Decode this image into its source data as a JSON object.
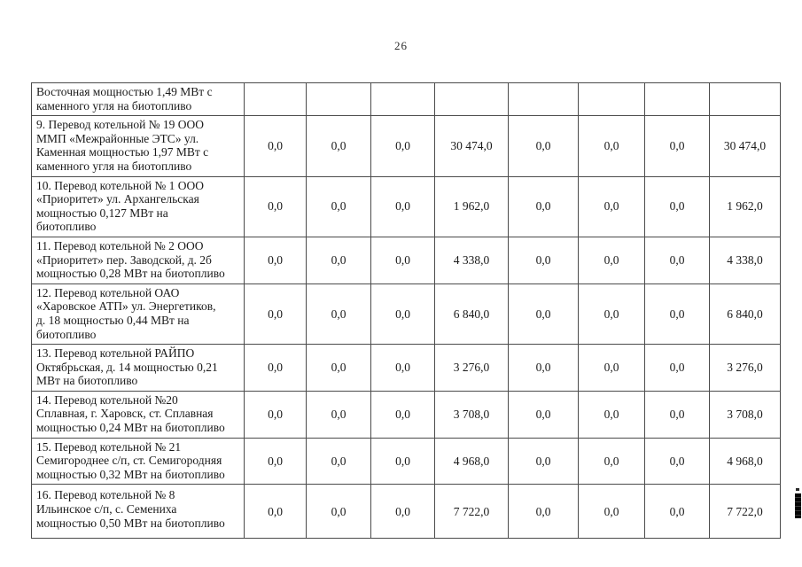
{
  "page_number": "26",
  "colors": {
    "ink": "#1a1a1a",
    "border_dark": "#4b4b4b",
    "border_light": "#6f6f6f",
    "paper": "#ffffff"
  },
  "table": {
    "column_count": 9,
    "rows": [
      {
        "desc": "Восточная мощностью 1,49 МВт с\nкаменного угля на биотопливо",
        "values": [
          "",
          "",
          "",
          "",
          "",
          "",
          "",
          ""
        ]
      },
      {
        "desc": "9. Перевод котельной № 19 ООО\nММП «Межрайонные ЭТС» ул.\nКаменная мощностью 1,97 МВт с\nкаменного угля на биотопливо",
        "values": [
          "0,0",
          "0,0",
          "0,0",
          "30 474,0",
          "0,0",
          "0,0",
          "0,0",
          "30 474,0"
        ]
      },
      {
        "desc": "10. Перевод котельной № 1 ООО\n«Приоритет» ул. Архангельская\nмощностью 0,127 МВт на\nбиотопливо",
        "values": [
          "0,0",
          "0,0",
          "0,0",
          "1 962,0",
          "0,0",
          "0,0",
          "0,0",
          "1 962,0"
        ]
      },
      {
        "desc": "11. Перевод котельной № 2 ООО\n«Приоритет» пер. Заводской, д. 2б\nмощностью 0,28 МВт на биотопливо",
        "values": [
          "0,0",
          "0,0",
          "0,0",
          "4 338,0",
          "0,0",
          "0,0",
          "0,0",
          "4 338,0"
        ]
      },
      {
        "desc": "12. Перевод котельной ОАО\n«Харовское АТП» ул. Энергетиков,\nд. 18  мощностью 0,44 МВт на\nбиотопливо",
        "values": [
          "0,0",
          "0,0",
          "0,0",
          "6 840,0",
          "0,0",
          "0,0",
          "0,0",
          "6 840,0"
        ]
      },
      {
        "desc": "13. Перевод котельной РАЙПО\nОктябрьская, д. 14  мощностью 0,21\nМВт на биотопливо",
        "values": [
          "0,0",
          "0,0",
          "0,0",
          "3 276,0",
          "0,0",
          "0,0",
          "0,0",
          "3 276,0"
        ]
      },
      {
        "desc": "14. Перевод котельной №20\nСплавная, г. Харовск, ст. Сплавная\nмощностью 0,24 МВт на биотопливо",
        "values": [
          "0,0",
          "0,0",
          "0,0",
          "3 708,0",
          "0,0",
          "0,0",
          "0,0",
          "3 708,0"
        ]
      },
      {
        "desc": "15. Перевод котельной № 21\nСемигороднее с/п, ст. Семигородняя\nмощностью 0,32 МВт на биотопливо",
        "values": [
          "0,0",
          "0,0",
          "0,0",
          "4 968,0",
          "0,0",
          "0,0",
          "0,0",
          "4 968,0"
        ]
      },
      {
        "desc": "16. Перевод котельной № 8\nИльинское с/п, с. Семениха\nмощностью 0,50 МВт на биотопливо",
        "values": [
          "0,0",
          "0,0",
          "0,0",
          "7 722,0",
          "0,0",
          "0,0",
          "0,0",
          "7 722,0"
        ]
      }
    ]
  }
}
